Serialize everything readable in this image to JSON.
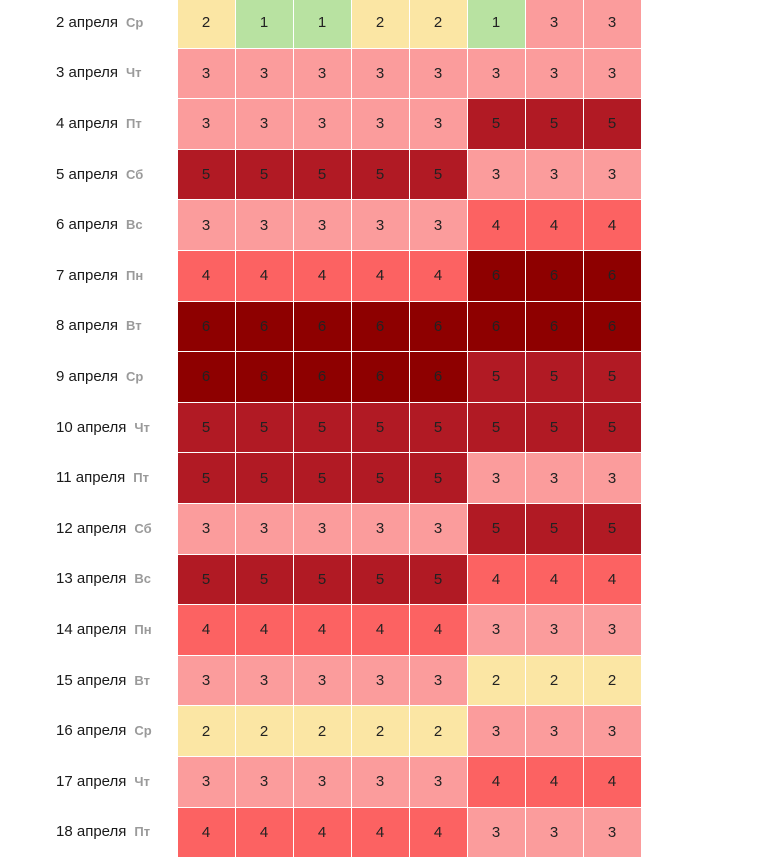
{
  "level_colors": {
    "1": "#b8e2a1",
    "2": "#fbe6a4",
    "3": "#fb9c9c",
    "4": "#fc6262",
    "5": "#b11a24",
    "6": "#8e0000"
  },
  "rows": [
    {
      "date": "2 апреля",
      "weekday": "Ср",
      "values": [
        2,
        1,
        1,
        2,
        2,
        1,
        3,
        3
      ]
    },
    {
      "date": "3 апреля",
      "weekday": "Чт",
      "values": [
        3,
        3,
        3,
        3,
        3,
        3,
        3,
        3
      ]
    },
    {
      "date": "4 апреля",
      "weekday": "Пт",
      "values": [
        3,
        3,
        3,
        3,
        3,
        5,
        5,
        5
      ]
    },
    {
      "date": "5 апреля",
      "weekday": "Сб",
      "values": [
        5,
        5,
        5,
        5,
        5,
        3,
        3,
        3
      ]
    },
    {
      "date": "6 апреля",
      "weekday": "Вс",
      "values": [
        3,
        3,
        3,
        3,
        3,
        4,
        4,
        4
      ]
    },
    {
      "date": "7 апреля",
      "weekday": "Пн",
      "values": [
        4,
        4,
        4,
        4,
        4,
        6,
        6,
        6
      ]
    },
    {
      "date": "8 апреля",
      "weekday": "Вт",
      "values": [
        6,
        6,
        6,
        6,
        6,
        6,
        6,
        6
      ]
    },
    {
      "date": "9 апреля",
      "weekday": "Ср",
      "values": [
        6,
        6,
        6,
        6,
        6,
        5,
        5,
        5
      ]
    },
    {
      "date": "10 апреля",
      "weekday": "Чт",
      "values": [
        5,
        5,
        5,
        5,
        5,
        5,
        5,
        5
      ]
    },
    {
      "date": "11 апреля",
      "weekday": "Пт",
      "values": [
        5,
        5,
        5,
        5,
        5,
        3,
        3,
        3
      ]
    },
    {
      "date": "12 апреля",
      "weekday": "Сб",
      "values": [
        3,
        3,
        3,
        3,
        3,
        5,
        5,
        5
      ]
    },
    {
      "date": "13 апреля",
      "weekday": "Вс",
      "values": [
        5,
        5,
        5,
        5,
        5,
        4,
        4,
        4
      ]
    },
    {
      "date": "14 апреля",
      "weekday": "Пн",
      "values": [
        4,
        4,
        4,
        4,
        4,
        3,
        3,
        3
      ]
    },
    {
      "date": "15 апреля",
      "weekday": "Вт",
      "values": [
        3,
        3,
        3,
        3,
        3,
        2,
        2,
        2
      ]
    },
    {
      "date": "16 апреля",
      "weekday": "Ср",
      "values": [
        2,
        2,
        2,
        2,
        2,
        3,
        3,
        3
      ]
    },
    {
      "date": "17 апреля",
      "weekday": "Чт",
      "values": [
        3,
        3,
        3,
        3,
        3,
        4,
        4,
        4
      ]
    },
    {
      "date": "18 апреля",
      "weekday": "Пт",
      "values": [
        4,
        4,
        4,
        4,
        4,
        3,
        3,
        3
      ]
    }
  ]
}
